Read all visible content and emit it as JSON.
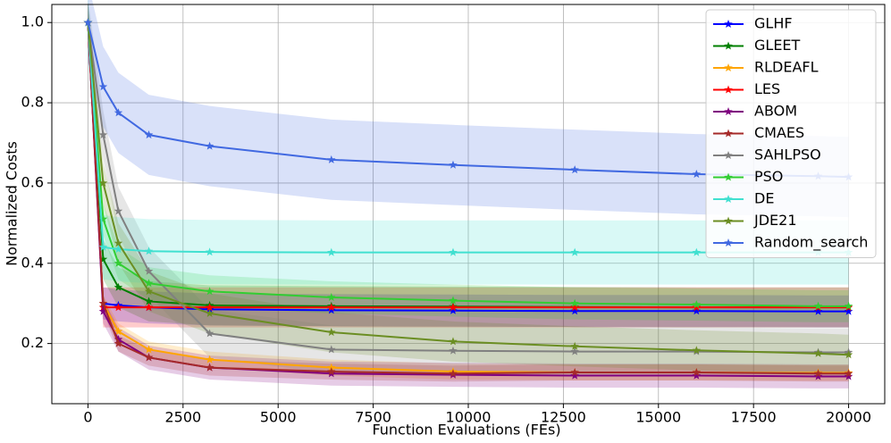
{
  "chart_data": {
    "type": "line",
    "xlabel": "Function Evaluations (FEs)",
    "ylabel": "Normalized Costs",
    "x": [
      0,
      400,
      800,
      1600,
      3200,
      6400,
      9600,
      12800,
      16000,
      19200,
      20000
    ],
    "xlim": [
      -950,
      20950
    ],
    "ylim": [
      0.05,
      1.045
    ],
    "xticks": [
      0,
      2500,
      5000,
      7500,
      10000,
      12500,
      15000,
      17500,
      20000
    ],
    "yticks": [
      0.2,
      0.4,
      0.6,
      0.8,
      {
        "value": 1.0,
        "label": "1.0"
      }
    ],
    "grid": true,
    "legend": "upper right",
    "series": [
      {
        "name": "GLHF",
        "color": "#0000ff",
        "std": 0.04,
        "values": [
          1.0,
          0.3,
          0.295,
          0.29,
          0.285,
          0.283,
          0.282,
          0.281,
          0.281,
          0.28,
          0.28
        ]
      },
      {
        "name": "GLEET",
        "color": "#008000",
        "std": 0.05,
        "values": [
          1.0,
          0.41,
          0.34,
          0.305,
          0.295,
          0.293,
          0.292,
          0.291,
          0.29,
          0.29,
          0.29
        ]
      },
      {
        "name": "RLDEAFL",
        "color": "#ffa500",
        "std": 0.02,
        "values": [
          1.0,
          0.3,
          0.23,
          0.185,
          0.16,
          0.14,
          0.13,
          0.128,
          0.128,
          0.127,
          0.127
        ]
      },
      {
        "name": "LES",
        "color": "#ff0000",
        "std": 0.05,
        "values": [
          1.0,
          0.29,
          0.29,
          0.29,
          0.29,
          0.29,
          0.29,
          0.29,
          0.29,
          0.29,
          0.29
        ]
      },
      {
        "name": "ABOM",
        "color": "#800080",
        "std": 0.03,
        "values": [
          1.0,
          0.28,
          0.21,
          0.165,
          0.14,
          0.125,
          0.122,
          0.12,
          0.12,
          0.118,
          0.118
        ]
      },
      {
        "name": "CMAES",
        "color": "#a52a2a",
        "std": 0.02,
        "values": [
          1.0,
          0.3,
          0.2,
          0.165,
          0.14,
          0.13,
          0.125,
          0.128,
          0.128,
          0.125,
          0.125
        ]
      },
      {
        "name": "SAHLPSO",
        "color": "#808080",
        "std": 0.06,
        "values": [
          1.0,
          0.72,
          0.53,
          0.38,
          0.225,
          0.185,
          0.182,
          0.18,
          0.18,
          0.178,
          0.178
        ]
      },
      {
        "name": "PSO",
        "color": "#32cd32",
        "std": 0.04,
        "values": [
          1.0,
          0.51,
          0.4,
          0.35,
          0.33,
          0.315,
          0.307,
          0.3,
          0.297,
          0.293,
          0.293
        ]
      },
      {
        "name": "DE",
        "color": "#40e0d0",
        "std": 0.08,
        "values": [
          1.0,
          0.44,
          0.435,
          0.43,
          0.428,
          0.427,
          0.427,
          0.427,
          0.427,
          0.427,
          0.427
        ]
      },
      {
        "name": "JDE21",
        "color": "#6b8e23",
        "std": 0.05,
        "values": [
          1.0,
          0.6,
          0.45,
          0.33,
          0.275,
          0.228,
          0.205,
          0.193,
          0.183,
          0.175,
          0.172
        ]
      },
      {
        "name": "Random_search",
        "color": "#4169e1",
        "std": 0.1,
        "values": [
          1.0,
          0.84,
          0.775,
          0.72,
          0.692,
          0.658,
          0.645,
          0.633,
          0.622,
          0.617,
          0.615
        ]
      }
    ]
  }
}
